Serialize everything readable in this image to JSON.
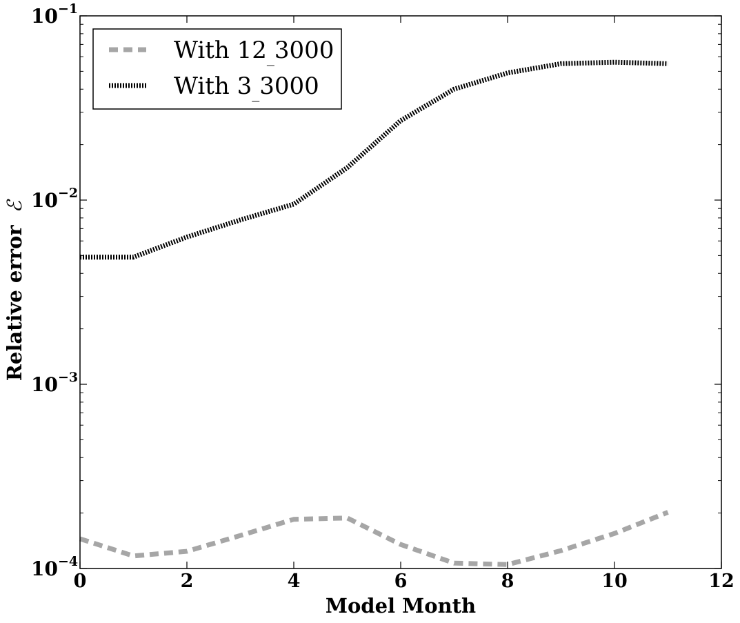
{
  "chart_data": {
    "type": "line",
    "xlabel": "Model Month",
    "ylabel": "Relative error",
    "ylabel_symbol": "ℰ",
    "xlim": [
      0,
      12
    ],
    "ylim": [
      0.0001,
      0.1
    ],
    "yscale": "log",
    "x_ticks": [
      "0",
      "2",
      "4",
      "6",
      "8",
      "10",
      "12"
    ],
    "x_tick_values": [
      0,
      2,
      4,
      6,
      8,
      10,
      12
    ],
    "y_ticks": [
      {
        "base": "10",
        "exp": "−4",
        "value": 0.0001
      },
      {
        "base": "10",
        "exp": "−3",
        "value": 0.001
      },
      {
        "base": "10",
        "exp": "−2",
        "value": 0.01
      },
      {
        "base": "10",
        "exp": "−1",
        "value": 0.1
      }
    ],
    "grid": false,
    "legend_position": "top-left",
    "series": [
      {
        "name": "With 12_3000",
        "display_parts": [
          "With 12",
          "3000"
        ],
        "color": "#a6a6a6",
        "style": "dashed",
        "x": [
          0,
          1,
          2,
          3,
          4,
          5,
          6,
          7,
          8,
          9,
          10,
          11
        ],
        "values": [
          0.000145,
          0.000117,
          0.000124,
          0.000151,
          0.000185,
          0.000188,
          0.000135,
          0.000107,
          0.000105,
          0.000125,
          0.000155,
          0.000202
        ]
      },
      {
        "name": "With 3_3000",
        "display_parts": [
          "With 3",
          "3000"
        ],
        "color": "#000000",
        "style": "dotted",
        "x": [
          0,
          1,
          2,
          3,
          4,
          5,
          6,
          7,
          8,
          9,
          10,
          11
        ],
        "values": [
          0.0049,
          0.0049,
          0.0063,
          0.0078,
          0.0095,
          0.015,
          0.027,
          0.04,
          0.049,
          0.055,
          0.056,
          0.055
        ]
      }
    ]
  }
}
